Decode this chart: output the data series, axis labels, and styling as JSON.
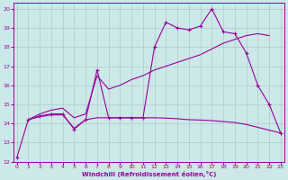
{
  "x_main": [
    0,
    1,
    2,
    3,
    4,
    5,
    6,
    7,
    8,
    9,
    10,
    11,
    12,
    13,
    14,
    15,
    16,
    17,
    18,
    19,
    20,
    21,
    22,
    23
  ],
  "y_main": [
    12.2,
    14.2,
    14.4,
    14.5,
    14.5,
    13.7,
    14.2,
    16.8,
    14.3,
    14.3,
    14.3,
    14.3,
    18.0,
    19.3,
    19.0,
    18.9,
    19.1,
    20.0,
    18.8,
    18.7,
    17.7,
    16.0,
    15.0,
    13.5
  ],
  "x_upper": [
    1,
    2,
    3,
    4,
    5,
    6,
    7,
    8,
    9,
    10,
    11,
    12,
    13,
    14,
    15,
    16,
    17,
    18,
    19,
    20,
    21,
    22
  ],
  "y_upper": [
    14.2,
    14.5,
    14.7,
    14.8,
    14.3,
    14.5,
    16.5,
    15.8,
    16.0,
    16.3,
    16.5,
    16.8,
    17.0,
    17.2,
    17.4,
    17.6,
    17.9,
    18.2,
    18.4,
    18.6,
    18.7,
    18.6
  ],
  "x_lower": [
    1,
    2,
    3,
    4,
    5,
    6,
    7,
    8,
    9,
    10,
    11,
    12,
    13,
    14,
    15,
    16,
    17,
    18,
    19,
    20,
    21,
    22,
    23
  ],
  "y_lower": [
    14.2,
    14.35,
    14.45,
    14.45,
    13.75,
    14.2,
    14.3,
    14.3,
    14.3,
    14.3,
    14.3,
    14.3,
    14.28,
    14.25,
    14.2,
    14.18,
    14.15,
    14.1,
    14.05,
    13.95,
    13.8,
    13.65,
    13.5
  ],
  "xlim": [
    -0.3,
    23.3
  ],
  "ylim": [
    12,
    20.3
  ],
  "yticks": [
    12,
    13,
    14,
    15,
    16,
    17,
    18,
    19,
    20
  ],
  "xticks": [
    0,
    1,
    2,
    3,
    4,
    5,
    6,
    7,
    8,
    9,
    10,
    11,
    12,
    13,
    14,
    15,
    16,
    17,
    18,
    19,
    20,
    21,
    22,
    23
  ],
  "xlabel": "Windchill (Refroidissement éolien,°C)",
  "color": "#990099",
  "bg_color": "#cce8e8",
  "grid_color": "#aacccc"
}
